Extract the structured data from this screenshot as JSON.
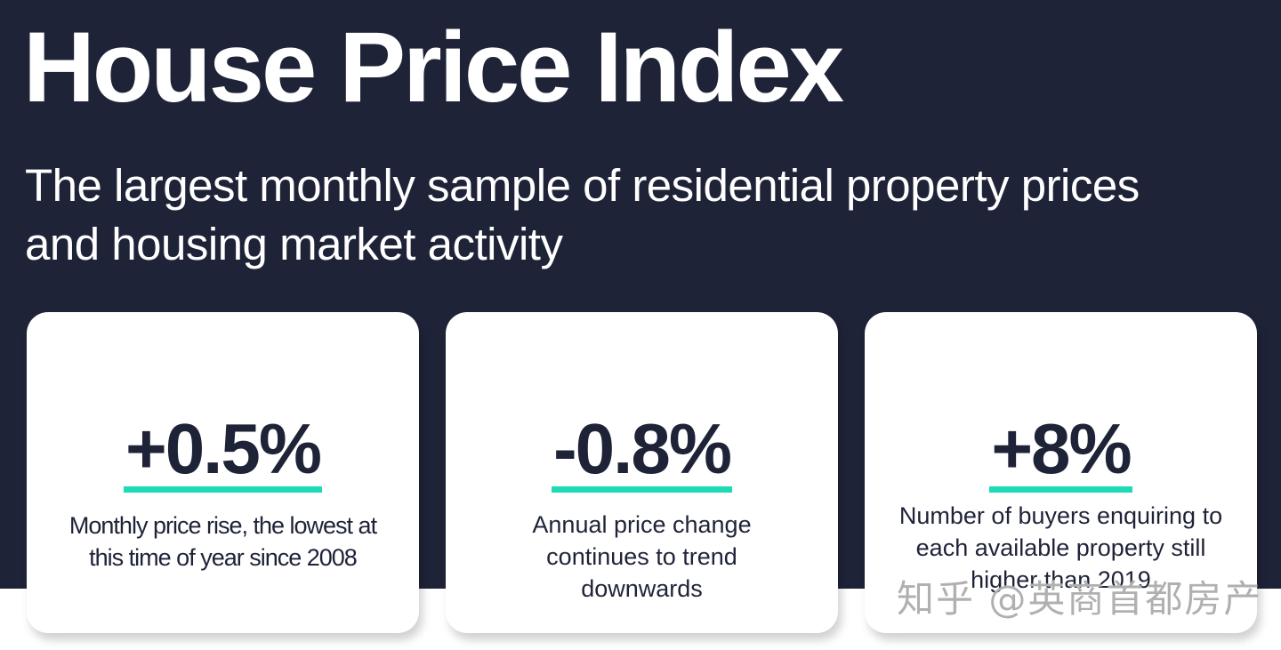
{
  "header": {
    "title": "House Price Index",
    "subtitle": "The largest monthly sample of residential property prices and housing market activity"
  },
  "colors": {
    "background_navy": "#1f2338",
    "card_background": "#ffffff",
    "accent_underline": "#1fdbb5",
    "text_dark": "#1f2338"
  },
  "cards": [
    {
      "value": "+0.5%",
      "description": "Monthly price rise, the lowest at this time of year since 2008"
    },
    {
      "value": "-0.8%",
      "description": "Annual price change continues to trend downwards"
    },
    {
      "value": "+8%",
      "description": "Number of buyers enquiring to each available property still higher than 2019"
    }
  ],
  "watermark": {
    "text": "知乎 @英商首都房产"
  }
}
